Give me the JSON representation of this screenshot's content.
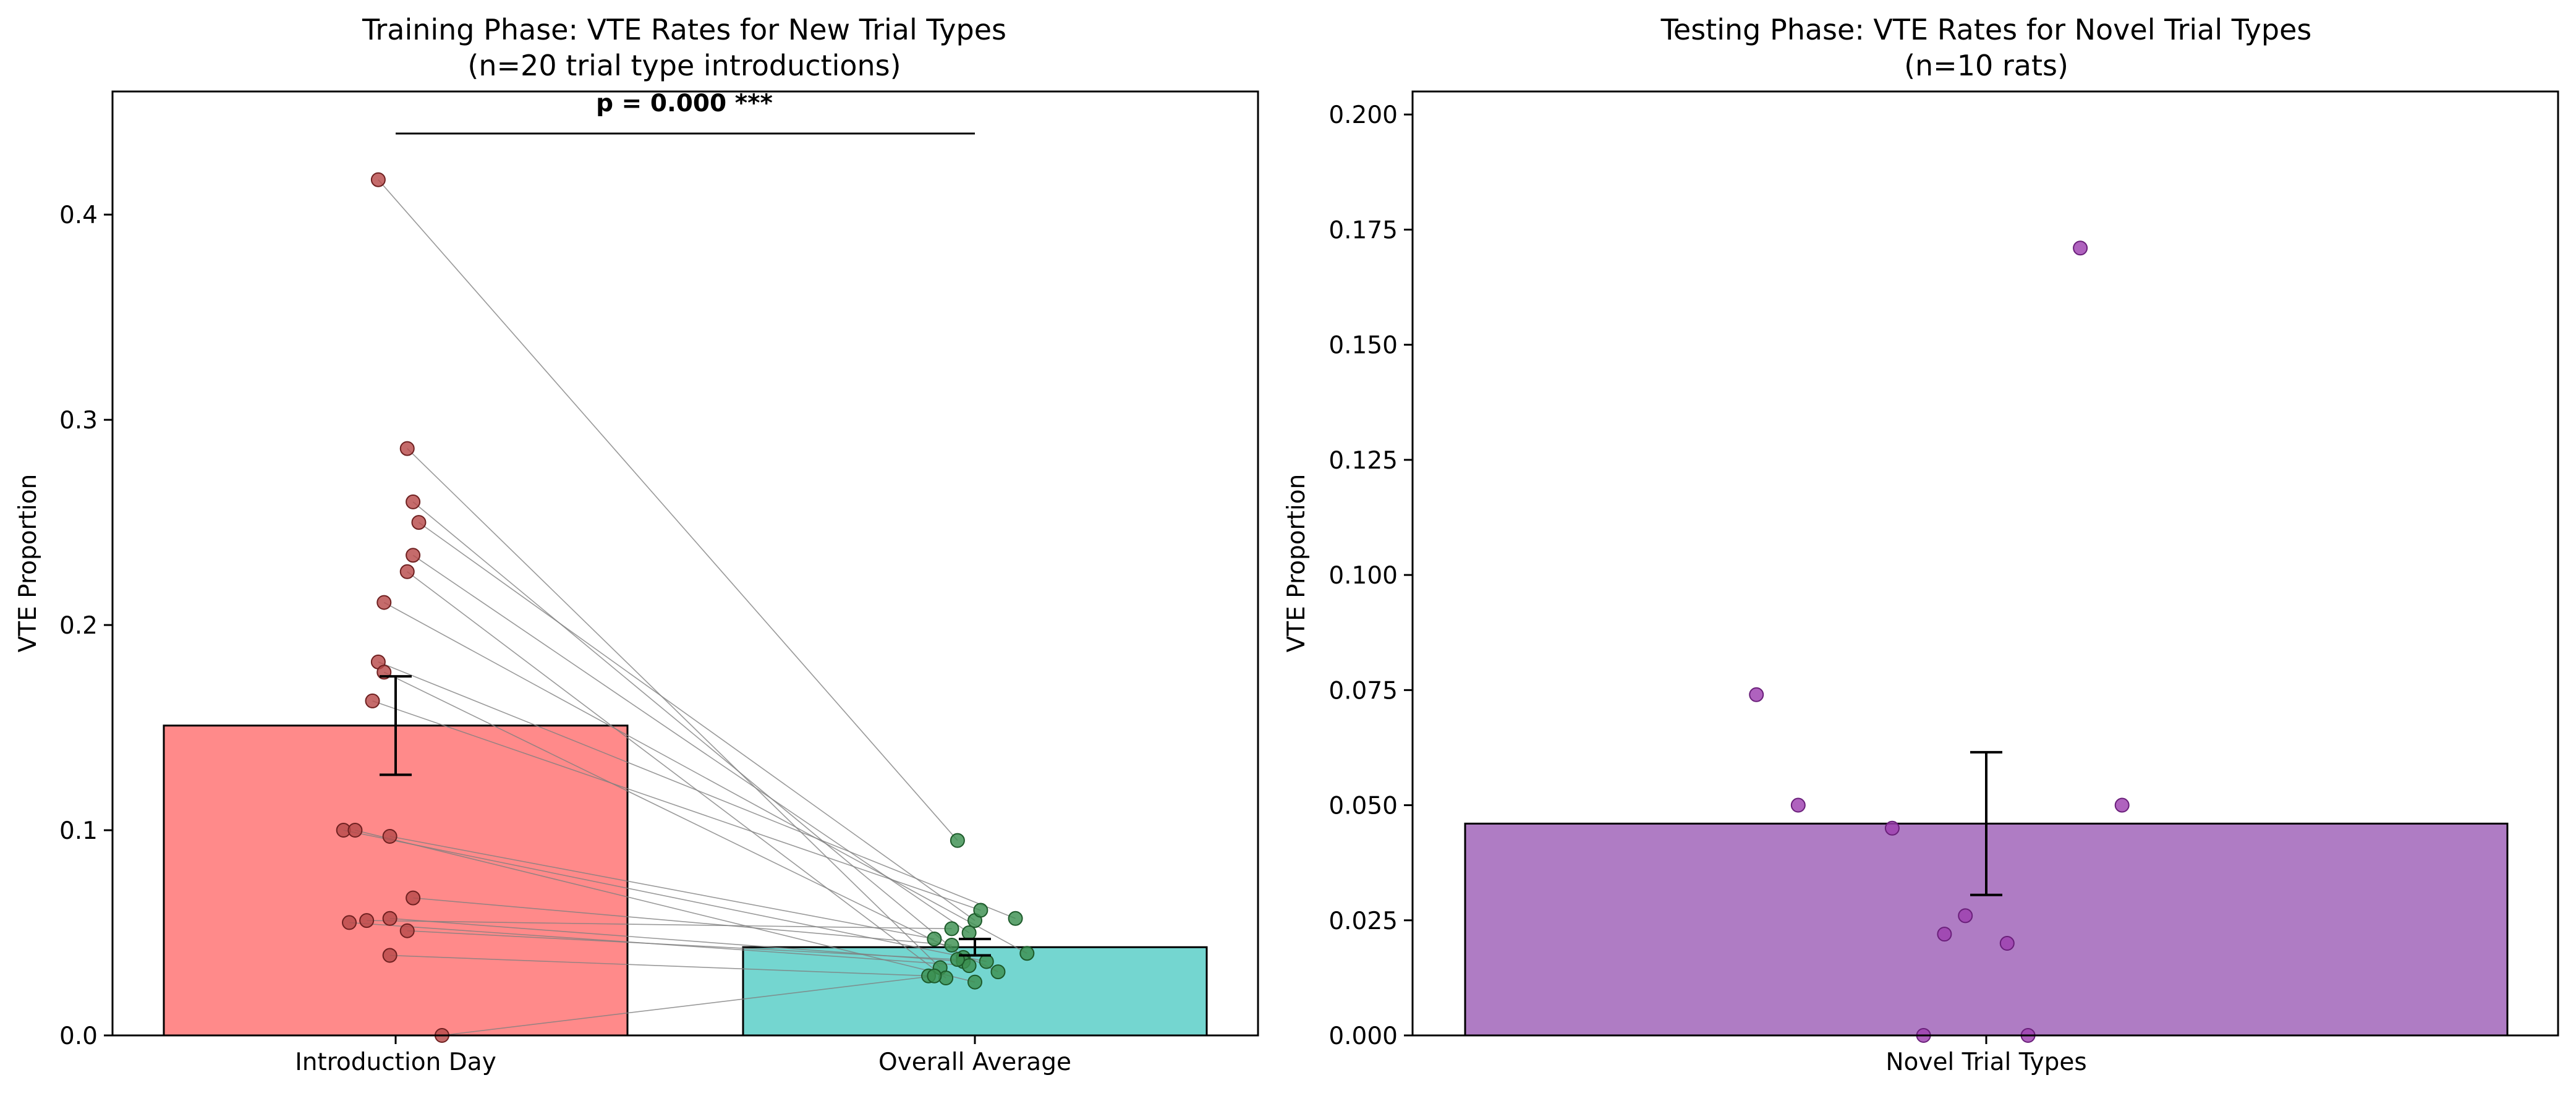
{
  "chart_data": [
    {
      "type": "bar",
      "title": "Training Phase: VTE Rates for New Trial Types\n(n=20 trial type introductions)",
      "xlabel": "",
      "ylabel": "VTE Proportion",
      "categories": [
        "Introduction Day",
        "Overall Average"
      ],
      "values": [
        0.151,
        0.043
      ],
      "errors": [
        0.024,
        0.004
      ],
      "ylim": [
        0,
        0.46
      ],
      "yticks": [
        "0.0",
        "0.1",
        "0.2",
        "0.3",
        "0.4"
      ],
      "colors": [
        "#ff8a8a",
        "#74d6d0"
      ],
      "point_colors": [
        "#b84b4b",
        "#3c9050"
      ],
      "annotation": "p = 0.000 ***",
      "paired_points": [
        {
          "x1": -0.03,
          "y1": 0.417,
          "x2": 0.97,
          "y2": 0.095
        },
        {
          "x1": 0.02,
          "y1": 0.286,
          "x2": 0.94,
          "y2": 0.033
        },
        {
          "x1": 0.04,
          "y1": 0.25,
          "x2": 1.0,
          "y2": 0.056
        },
        {
          "x1": 0.03,
          "y1": 0.26,
          "x2": 0.98,
          "y2": 0.038
        },
        {
          "x1": 0.03,
          "y1": 0.234,
          "x2": 0.99,
          "y2": 0.05
        },
        {
          "x1": 0.02,
          "y1": 0.226,
          "x2": 0.95,
          "y2": 0.028
        },
        {
          "x1": -0.02,
          "y1": 0.211,
          "x2": 1.09,
          "y2": 0.04
        },
        {
          "x1": -0.03,
          "y1": 0.182,
          "x2": 1.07,
          "y2": 0.057
        },
        {
          "x1": -0.02,
          "y1": 0.177,
          "x2": 1.04,
          "y2": 0.031
        },
        {
          "x1": -0.04,
          "y1": 0.163,
          "x2": 1.01,
          "y2": 0.061
        },
        {
          "x1": -0.09,
          "y1": 0.1,
          "x2": 1.02,
          "y2": 0.036
        },
        {
          "x1": -0.07,
          "y1": 0.1,
          "x2": 1.0,
          "y2": 0.026
        },
        {
          "x1": -0.01,
          "y1": 0.097,
          "x2": 0.93,
          "y2": 0.047
        },
        {
          "x1": 0.03,
          "y1": 0.067,
          "x2": 0.96,
          "y2": 0.044
        },
        {
          "x1": -0.01,
          "y1": 0.057,
          "x2": 0.98,
          "y2": 0.036
        },
        {
          "x1": -0.05,
          "y1": 0.056,
          "x2": 0.96,
          "y2": 0.052
        },
        {
          "x1": -0.08,
          "y1": 0.055,
          "x2": 0.99,
          "y2": 0.034
        },
        {
          "x1": 0.02,
          "y1": 0.051,
          "x2": 0.97,
          "y2": 0.037
        },
        {
          "x1": -0.01,
          "y1": 0.039,
          "x2": 0.92,
          "y2": 0.029
        },
        {
          "x1": 0.08,
          "y1": 0.0,
          "x2": 0.93,
          "y2": 0.029
        }
      ]
    },
    {
      "type": "bar",
      "title": "Testing Phase: VTE Rates for Novel Trial Types\n(n=10 rats)",
      "xlabel": "",
      "ylabel": "VTE Proportion",
      "categories": [
        "Novel Trial Types"
      ],
      "values": [
        0.046
      ],
      "errors": [
        0.0155
      ],
      "ylim": [
        0,
        0.205
      ],
      "yticks": [
        "0.000",
        "0.025",
        "0.050",
        "0.075",
        "0.100",
        "0.125",
        "0.150",
        "0.175",
        "0.200"
      ],
      "colors": [
        "#af7cc4"
      ],
      "point_colors": [
        "#9d3fb0"
      ],
      "points": [
        {
          "x": 0.09,
          "y": 0.171
        },
        {
          "x": -0.22,
          "y": 0.074
        },
        {
          "x": -0.18,
          "y": 0.05
        },
        {
          "x": 0.13,
          "y": 0.05
        },
        {
          "x": -0.09,
          "y": 0.045
        },
        {
          "x": -0.02,
          "y": 0.026
        },
        {
          "x": -0.04,
          "y": 0.022
        },
        {
          "x": 0.02,
          "y": 0.02
        },
        {
          "x": -0.06,
          "y": 0.0
        },
        {
          "x": 0.04,
          "y": 0.0
        }
      ]
    }
  ]
}
